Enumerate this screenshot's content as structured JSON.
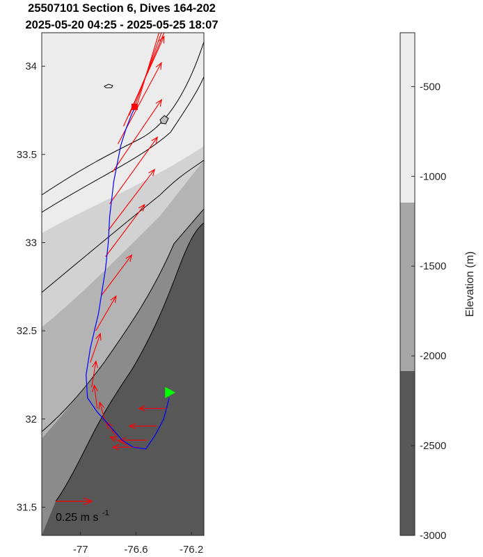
{
  "titles": {
    "line1": "25507101 Section 6, Dives 164-202",
    "line2": "2025-05-20 04:25 - 2025-05-25 18:07"
  },
  "map": {
    "x_ticks": [
      {
        "value": -77.0,
        "label": "-77"
      },
      {
        "value": -76.6,
        "label": "-76.6"
      },
      {
        "value": -76.2,
        "label": "-76.2"
      }
    ],
    "y_ticks": [
      {
        "value": 31.5,
        "label": "31.5"
      },
      {
        "value": 32.0,
        "label": "32"
      },
      {
        "value": 32.5,
        "label": "32.5"
      },
      {
        "value": 33.0,
        "label": "33"
      },
      {
        "value": 33.5,
        "label": "33.5"
      },
      {
        "value": 34.0,
        "label": "34"
      }
    ],
    "xlim": [
      -77.28,
      -76.11
    ],
    "ylim": [
      31.34,
      34.19
    ],
    "colors": {
      "track": "#0000ff",
      "arrows": "#ff0000",
      "start_marker": "#00ff00",
      "end_marker": "#ff0000",
      "contour": "#000000"
    }
  },
  "colorbar": {
    "label": "Elevation (m)",
    "ticks": [
      {
        "value": -500,
        "label": "-500"
      },
      {
        "value": -1000,
        "label": "-1000"
      },
      {
        "value": -1500,
        "label": "-1500"
      },
      {
        "value": -2000,
        "label": "-2000"
      },
      {
        "value": -2500,
        "label": "-2500"
      },
      {
        "value": -3000,
        "label": "-3000"
      }
    ],
    "range": [
      -3000,
      -200
    ]
  },
  "scale_arrow": {
    "label": "0.25 m s",
    "exponent": "-1",
    "value": 0.25
  },
  "chart_data": {
    "type": "scatter",
    "title": "25507101 Section 6, Dives 164-202 2025-05-20 04:25 - 2025-05-25 18:07",
    "xlabel": "",
    "ylabel": "",
    "xlim": [
      -77.28,
      -76.11
    ],
    "ylim": [
      31.34,
      34.19
    ],
    "series": [
      {
        "kind": "glider-track",
        "x": [
          -76.36,
          -76.4,
          -76.46,
          -76.53,
          -76.62,
          -76.7,
          -76.8,
          -76.88,
          -76.95,
          -76.96,
          -76.93,
          -76.87,
          -76.82,
          -76.8,
          -76.79,
          -76.76,
          -76.71,
          -76.67,
          -76.63,
          -76.61,
          -76.59
        ],
        "y": [
          32.12,
          32.0,
          31.91,
          31.83,
          31.84,
          31.88,
          31.97,
          32.04,
          32.12,
          32.25,
          32.4,
          32.6,
          32.85,
          33.0,
          33.15,
          33.35,
          33.55,
          33.65,
          33.73,
          33.76,
          33.77
        ]
      }
    ],
    "current_vectors": {
      "x": [
        -76.38,
        -76.45,
        -76.52,
        -76.58,
        -76.66,
        -76.74,
        -76.82,
        -76.88,
        -76.92,
        -76.93,
        -76.89,
        -76.85,
        -76.82,
        -76.8,
        -76.79,
        -76.77,
        -76.73,
        -76.69,
        -76.65,
        -76.62,
        -76.6
      ],
      "y": [
        32.06,
        31.96,
        31.88,
        31.84,
        31.85,
        31.9,
        31.98,
        32.06,
        32.18,
        32.32,
        32.5,
        32.7,
        32.92,
        33.07,
        33.22,
        33.4,
        33.56,
        33.66,
        33.72,
        33.75,
        33.76
      ],
      "u": [
        -0.19,
        -0.19,
        -0.19,
        -0.18,
        -0.12,
        -0.07,
        -0.04,
        -0.02,
        0.03,
        0.07,
        0.14,
        0.21,
        0.27,
        0.32,
        0.33,
        0.34,
        0.3,
        0.28,
        0.27,
        0.24,
        0.2
      ],
      "v": [
        0.0,
        0.0,
        0.0,
        0.0,
        0.06,
        0.1,
        0.14,
        0.16,
        0.18,
        0.2,
        0.24,
        0.28,
        0.36,
        0.42,
        0.46,
        0.5,
        0.56,
        0.62,
        0.64,
        0.66,
        0.66
      ]
    },
    "markers": [
      {
        "kind": "start",
        "lon": -76.36,
        "lat": 32.15
      },
      {
        "kind": "end",
        "lon": -76.61,
        "lat": 33.77
      }
    ]
  }
}
